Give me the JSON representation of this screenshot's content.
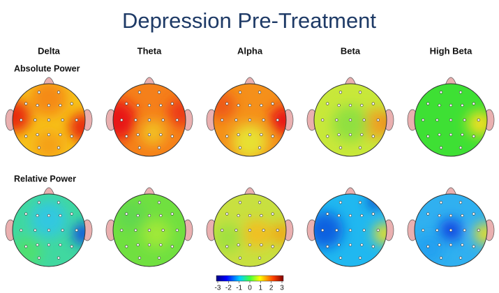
{
  "title": "Depression Pre-Treatment",
  "bands": [
    "Delta",
    "Theta",
    "Alpha",
    "Beta",
    "High Beta"
  ],
  "rows": [
    "Absolute Power",
    "Relative Power"
  ],
  "colorbar": {
    "ticks": [
      -3,
      -2,
      -1,
      0,
      1,
      2,
      3
    ]
  }
}
